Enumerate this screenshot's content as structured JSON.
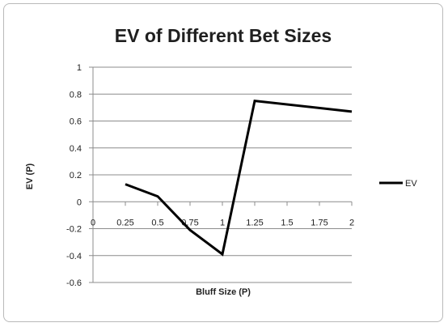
{
  "chart_data": {
    "type": "line",
    "title": "EV of Different Bet Sizes",
    "xlabel": "Bluff Size (P)",
    "ylabel": "EV (P)",
    "x_ticks": [
      "0",
      "0.25",
      "0.5",
      "0.75",
      "1",
      "1.25",
      "1.5",
      "1.75",
      "2"
    ],
    "y_ticks": [
      "1",
      "0.8",
      "0.6",
      "0.4",
      "0.2",
      "0",
      "-0.2",
      "-0.4",
      "-0.6"
    ],
    "xlim": [
      0,
      2
    ],
    "ylim": [
      -0.6,
      1
    ],
    "grid": true,
    "legend_position": "right",
    "series": [
      {
        "name": "EV",
        "color": "#000000",
        "x": [
          0.25,
          0.5,
          0.75,
          1,
          1.25,
          2
        ],
        "y": [
          0.13,
          0.04,
          -0.21,
          -0.39,
          0.75,
          0.67
        ]
      }
    ]
  }
}
